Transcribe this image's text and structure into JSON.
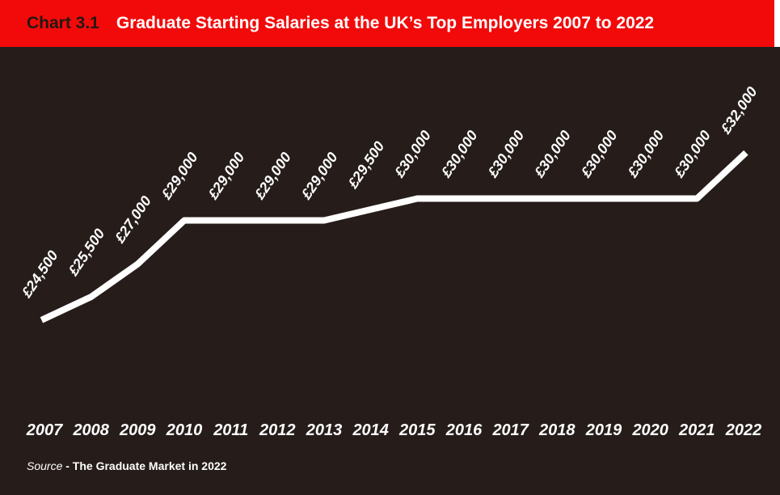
{
  "header": {
    "label": "Chart 3.1",
    "title": "Graduate Starting Salaries at the UK’s Top Employers 2007 to 2022"
  },
  "footer": {
    "source_label": "Source",
    "source_text": "- The Graduate Market in 2022"
  },
  "colors": {
    "header_bg": "#f20a0a",
    "header_label": "#241712",
    "header_title": "#ffffff",
    "chart_bg": "#261d1a",
    "line": "#ffffff",
    "text": "#ffffff",
    "page_bg": "#ffffff"
  },
  "chart_data": {
    "type": "line",
    "title": "Graduate Starting Salaries at the UK’s Top Employers 2007 to 2022",
    "categories": [
      "2007",
      "2008",
      "2009",
      "2010",
      "2011",
      "2012",
      "2013",
      "2014",
      "2015",
      "2016",
      "2017",
      "2018",
      "2019",
      "2020",
      "2021",
      "2022"
    ],
    "values": [
      24500,
      25500,
      27000,
      29000,
      29000,
      29000,
      29000,
      29500,
      30000,
      30000,
      30000,
      30000,
      30000,
      30000,
      30000,
      32000
    ],
    "point_labels": [
      "£24,500",
      "£25,500",
      "£27,000",
      "£29,000",
      "£29,000",
      "£29,000",
      "£29,000",
      "£29,500",
      "£30,000",
      "£30,000",
      "£30,000",
      "£30,000",
      "£30,000",
      "£30,000",
      "£30,000",
      "£32,000"
    ],
    "xlabel": "",
    "ylabel": "",
    "ylim": [
      24000,
      32500
    ],
    "grid": false,
    "legend": "none",
    "line_color": "#ffffff",
    "label_color": "#ffffff",
    "label_rotation_deg": -56
  }
}
